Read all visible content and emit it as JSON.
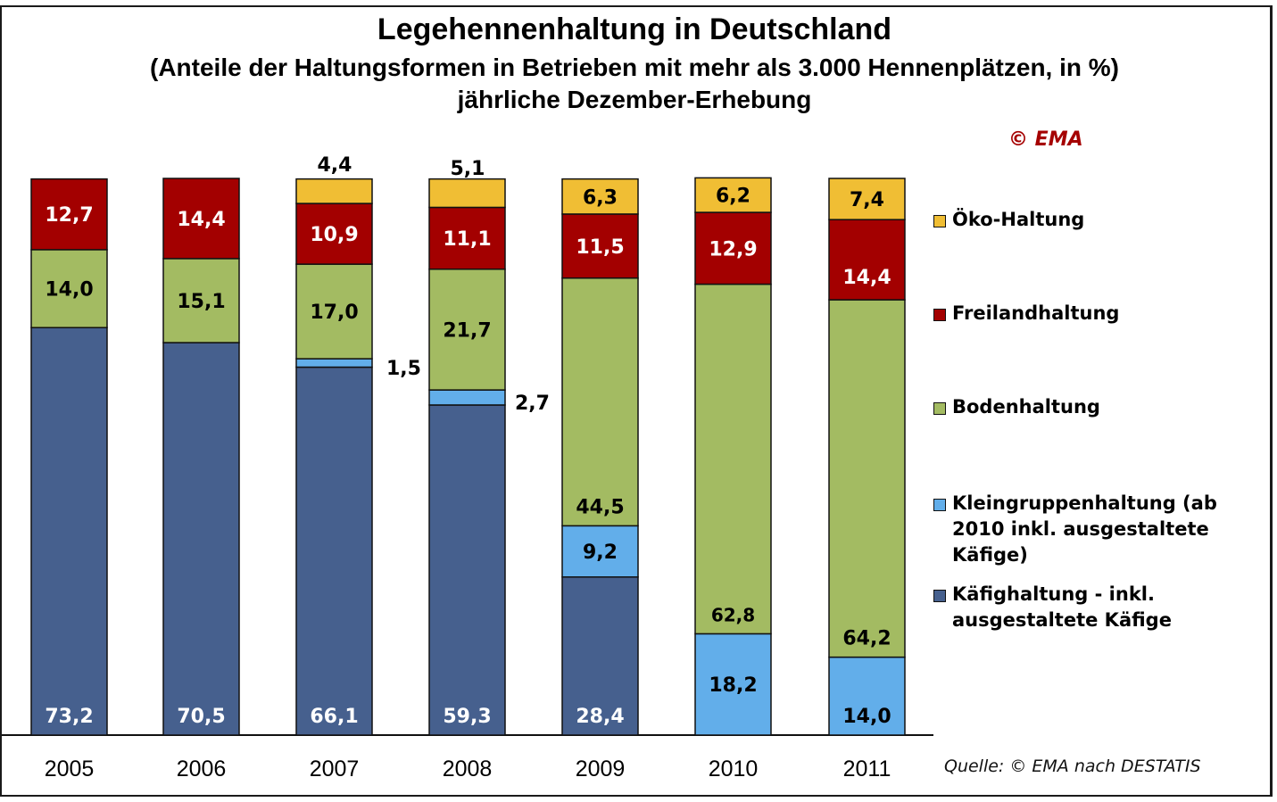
{
  "chart_data": {
    "type": "bar",
    "stacked": true,
    "title": "Legehennenhaltung in Deutschland",
    "subtitle": "(Anteile der Haltungsformen in Betrieben mit mehr als 3.000 Hennenplätzen, in %)",
    "subtitle2": "jährliche Dezember-Erhebung",
    "copyright": "© EMA",
    "source": "Quelle: © EMA nach DESTATIS",
    "xlabel": "",
    "ylabel": "",
    "ylim": [
      0,
      100
    ],
    "grid": false,
    "legend_position": "right",
    "categories": [
      "2005",
      "2006",
      "2007",
      "2008",
      "2009",
      "2010",
      "2011"
    ],
    "series": [
      {
        "key": "kaefig",
        "name": "Käfighaltung - inkl. ausgestaltete Käfige",
        "color": "#46608e",
        "label_color": "#ffffff",
        "values": [
          73.2,
          70.5,
          66.1,
          59.3,
          28.4,
          0,
          0
        ],
        "labels": [
          "73,2",
          "70,5",
          "66,1",
          "59,3",
          "28,4",
          "",
          ""
        ]
      },
      {
        "key": "kleingruppe",
        "name": "Kleingruppenhaltung (ab 2010 inkl. ausgestaltete Käfige)",
        "color": "#62aeea",
        "label_color": "#000000",
        "values": [
          0,
          0,
          1.5,
          2.7,
          9.2,
          18.2,
          14.0
        ],
        "labels": [
          "",
          "",
          "1,5",
          "2,7",
          "9,2",
          "18,2",
          "14,0"
        ]
      },
      {
        "key": "boden",
        "name": "Bodenhaltung",
        "color": "#a3bb62",
        "label_color": "#000000",
        "values": [
          14.0,
          15.1,
          17.0,
          21.7,
          44.5,
          62.8,
          64.2
        ],
        "labels": [
          "14,0",
          "15,1",
          "17,0",
          "21,7",
          "44,5",
          "62,8",
          "64,2"
        ]
      },
      {
        "key": "freiland",
        "name": "Freilandhaltung",
        "color": "#a30000",
        "label_color": "#ffffff",
        "values": [
          12.7,
          14.4,
          10.9,
          11.1,
          11.5,
          12.9,
          14.4
        ],
        "labels": [
          "12,7",
          "14,4",
          "10,9",
          "11,1",
          "11,5",
          "12,9",
          "14,4"
        ]
      },
      {
        "key": "oeko",
        "name": "Öko-Haltung",
        "color": "#f0be34",
        "label_color": "#000000",
        "values": [
          0,
          0,
          4.4,
          5.1,
          6.3,
          6.2,
          7.4
        ],
        "labels": [
          "",
          "",
          "4,4",
          "5,1",
          "6,3",
          "6,2",
          "7,4"
        ]
      }
    ],
    "legend_order": [
      "oeko",
      "freiland",
      "boden",
      "kleingruppe",
      "kaefig"
    ]
  }
}
